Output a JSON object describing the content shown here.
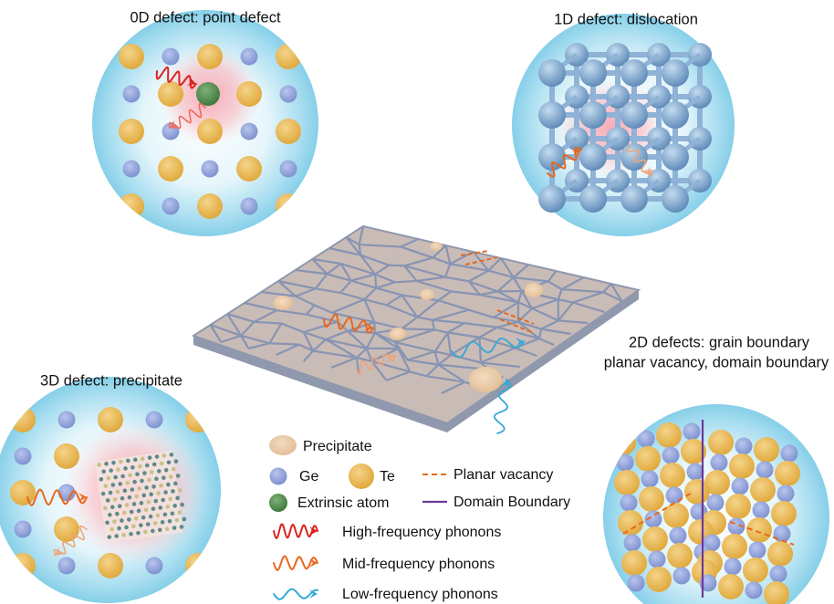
{
  "panels": [
    {
      "title": "0D defect: point defect"
    },
    {
      "title": "1D defect: dislocation"
    },
    {
      "title": [
        "2D defects: grain boundary",
        "planar vacancy, domain boundary"
      ]
    },
    {
      "title": "3D defect: precipitate"
    }
  ],
  "legend": {
    "precipitate": "Precipitate",
    "ge": "Ge",
    "te": "Te",
    "planar_vacancy": "Planar vacancy",
    "extrinsic": "Extrinsic atom",
    "domain_boundary": "Domain Boundary",
    "high": "High-frequency phonons",
    "mid": "Mid-frequency phonons",
    "low": "Low-frequency phonons"
  }
}
